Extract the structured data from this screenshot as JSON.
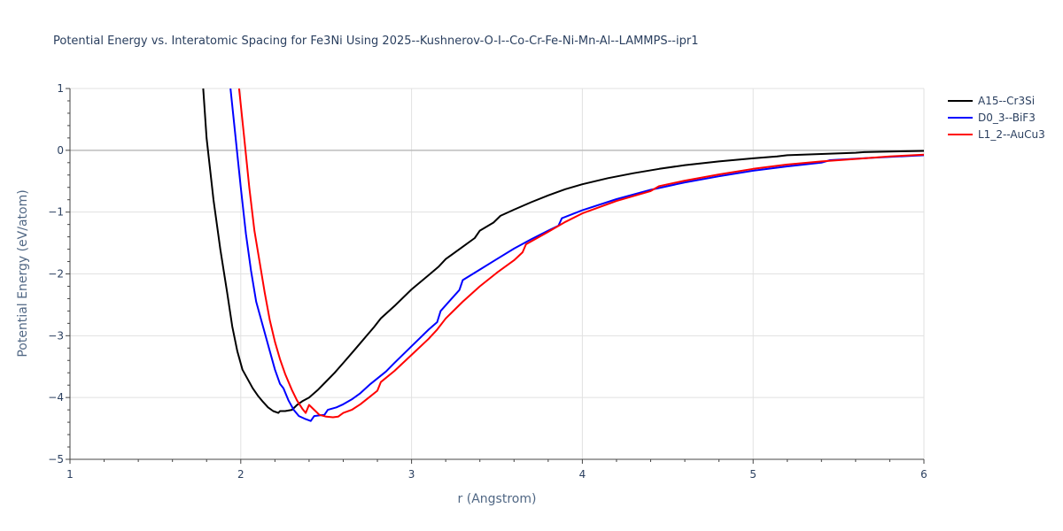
{
  "chart_data": {
    "type": "line",
    "title": "Potential Energy vs. Interatomic Spacing for Fe3Ni Using 2025--Kushnerov-O-I--Co-Cr-Fe-Ni-Mn-Al--LAMMPS--ipr1",
    "xlabel": "r (Angstrom)",
    "ylabel": "Potential Energy (eV/atom)",
    "xlim": [
      1,
      6
    ],
    "ylim": [
      -5,
      1
    ],
    "xticks": [
      1,
      2,
      3,
      4,
      5,
      6
    ],
    "xtick_labels": [
      "1",
      "2",
      "3",
      "4",
      "5",
      "6"
    ],
    "yticks": [
      1,
      0,
      -1,
      -2,
      -3,
      -4,
      -5
    ],
    "ytick_labels": [
      "1",
      "0",
      "−1",
      "−2",
      "−3",
      "−4",
      "−5"
    ],
    "legend_position": "top-right",
    "series": [
      {
        "name": "A15--Cr3Si",
        "color": "#000000",
        "points": [
          [
            1.78,
            1.0
          ],
          [
            1.8,
            0.2
          ],
          [
            1.84,
            -0.8
          ],
          [
            1.88,
            -1.6
          ],
          [
            1.92,
            -2.3
          ],
          [
            1.95,
            -2.85
          ],
          [
            1.98,
            -3.25
          ],
          [
            2.01,
            -3.55
          ],
          [
            2.04,
            -3.7
          ],
          [
            2.07,
            -3.85
          ],
          [
            2.1,
            -3.97
          ],
          [
            2.13,
            -4.07
          ],
          [
            2.16,
            -4.16
          ],
          [
            2.19,
            -4.22
          ],
          [
            2.22,
            -4.25
          ],
          [
            2.23,
            -4.22
          ],
          [
            2.26,
            -4.22
          ],
          [
            2.3,
            -4.2
          ],
          [
            2.33,
            -4.12
          ],
          [
            2.36,
            -4.06
          ],
          [
            2.4,
            -4.0
          ],
          [
            2.45,
            -3.88
          ],
          [
            2.5,
            -3.74
          ],
          [
            2.55,
            -3.6
          ],
          [
            2.6,
            -3.44
          ],
          [
            2.66,
            -3.25
          ],
          [
            2.7,
            -3.12
          ],
          [
            2.74,
            -2.99
          ],
          [
            2.78,
            -2.86
          ],
          [
            2.82,
            -2.72
          ],
          [
            2.9,
            -2.52
          ],
          [
            3.0,
            -2.25
          ],
          [
            3.1,
            -2.02
          ],
          [
            3.16,
            -1.88
          ],
          [
            3.2,
            -1.76
          ],
          [
            3.3,
            -1.56
          ],
          [
            3.37,
            -1.42
          ],
          [
            3.4,
            -1.3
          ],
          [
            3.48,
            -1.17
          ],
          [
            3.52,
            -1.06
          ],
          [
            3.6,
            -0.96
          ],
          [
            3.7,
            -0.84
          ],
          [
            3.8,
            -0.73
          ],
          [
            3.9,
            -0.63
          ],
          [
            4.0,
            -0.55
          ],
          [
            4.15,
            -0.45
          ],
          [
            4.3,
            -0.37
          ],
          [
            4.45,
            -0.3
          ],
          [
            4.6,
            -0.24
          ],
          [
            4.8,
            -0.18
          ],
          [
            5.0,
            -0.13
          ],
          [
            5.14,
            -0.1
          ],
          [
            5.2,
            -0.08
          ],
          [
            5.4,
            -0.06
          ],
          [
            5.6,
            -0.04
          ],
          [
            5.65,
            -0.03
          ],
          [
            5.8,
            -0.02
          ],
          [
            6.0,
            -0.01
          ]
        ]
      },
      {
        "name": "D0_3--BiF3",
        "color": "#0000ff",
        "points": [
          [
            1.94,
            1.0
          ],
          [
            1.97,
            0.2
          ],
          [
            2.0,
            -0.6
          ],
          [
            2.03,
            -1.35
          ],
          [
            2.06,
            -1.95
          ],
          [
            2.09,
            -2.45
          ],
          [
            2.13,
            -2.85
          ],
          [
            2.17,
            -3.25
          ],
          [
            2.2,
            -3.55
          ],
          [
            2.23,
            -3.78
          ],
          [
            2.25,
            -3.85
          ],
          [
            2.28,
            -4.05
          ],
          [
            2.31,
            -4.2
          ],
          [
            2.34,
            -4.3
          ],
          [
            2.38,
            -4.35
          ],
          [
            2.41,
            -4.38
          ],
          [
            2.43,
            -4.3
          ],
          [
            2.46,
            -4.29
          ],
          [
            2.49,
            -4.28
          ],
          [
            2.51,
            -4.2
          ],
          [
            2.56,
            -4.16
          ],
          [
            2.6,
            -4.11
          ],
          [
            2.65,
            -4.03
          ],
          [
            2.7,
            -3.93
          ],
          [
            2.76,
            -3.78
          ],
          [
            2.85,
            -3.58
          ],
          [
            2.9,
            -3.44
          ],
          [
            3.0,
            -3.17
          ],
          [
            3.1,
            -2.9
          ],
          [
            3.15,
            -2.78
          ],
          [
            3.17,
            -2.6
          ],
          [
            3.28,
            -2.26
          ],
          [
            3.3,
            -2.1
          ],
          [
            3.4,
            -1.93
          ],
          [
            3.5,
            -1.76
          ],
          [
            3.6,
            -1.59
          ],
          [
            3.7,
            -1.44
          ],
          [
            3.8,
            -1.3
          ],
          [
            3.86,
            -1.22
          ],
          [
            3.88,
            -1.1
          ],
          [
            4.0,
            -0.97
          ],
          [
            4.2,
            -0.79
          ],
          [
            4.4,
            -0.64
          ],
          [
            4.6,
            -0.52
          ],
          [
            4.8,
            -0.42
          ],
          [
            5.0,
            -0.33
          ],
          [
            5.2,
            -0.26
          ],
          [
            5.4,
            -0.2
          ],
          [
            5.45,
            -0.16
          ],
          [
            5.7,
            -0.12
          ],
          [
            6.0,
            -0.08
          ]
        ]
      },
      {
        "name": "L1_2--AuCu3",
        "color": "#ff0000",
        "points": [
          [
            1.99,
            1.0
          ],
          [
            2.02,
            0.2
          ],
          [
            2.05,
            -0.6
          ],
          [
            2.08,
            -1.3
          ],
          [
            2.11,
            -1.8
          ],
          [
            2.14,
            -2.3
          ],
          [
            2.17,
            -2.75
          ],
          [
            2.2,
            -3.1
          ],
          [
            2.23,
            -3.38
          ],
          [
            2.26,
            -3.62
          ],
          [
            2.3,
            -3.88
          ],
          [
            2.33,
            -4.05
          ],
          [
            2.36,
            -4.18
          ],
          [
            2.38,
            -4.25
          ],
          [
            2.4,
            -4.12
          ],
          [
            2.43,
            -4.2
          ],
          [
            2.46,
            -4.28
          ],
          [
            2.5,
            -4.31
          ],
          [
            2.54,
            -4.32
          ],
          [
            2.57,
            -4.31
          ],
          [
            2.6,
            -4.25
          ],
          [
            2.65,
            -4.2
          ],
          [
            2.7,
            -4.11
          ],
          [
            2.75,
            -4.0
          ],
          [
            2.8,
            -3.89
          ],
          [
            2.82,
            -3.75
          ],
          [
            2.9,
            -3.57
          ],
          [
            3.0,
            -3.31
          ],
          [
            3.1,
            -3.05
          ],
          [
            3.15,
            -2.9
          ],
          [
            3.2,
            -2.72
          ],
          [
            3.3,
            -2.45
          ],
          [
            3.4,
            -2.2
          ],
          [
            3.5,
            -1.98
          ],
          [
            3.6,
            -1.78
          ],
          [
            3.65,
            -1.65
          ],
          [
            3.67,
            -1.52
          ],
          [
            3.8,
            -1.32
          ],
          [
            3.9,
            -1.16
          ],
          [
            4.0,
            -1.02
          ],
          [
            4.2,
            -0.82
          ],
          [
            4.4,
            -0.66
          ],
          [
            4.45,
            -0.58
          ],
          [
            4.6,
            -0.49
          ],
          [
            4.8,
            -0.39
          ],
          [
            5.0,
            -0.3
          ],
          [
            5.2,
            -0.23
          ],
          [
            5.4,
            -0.18
          ],
          [
            5.6,
            -0.14
          ],
          [
            5.8,
            -0.1
          ],
          [
            6.0,
            -0.07
          ]
        ]
      }
    ]
  }
}
